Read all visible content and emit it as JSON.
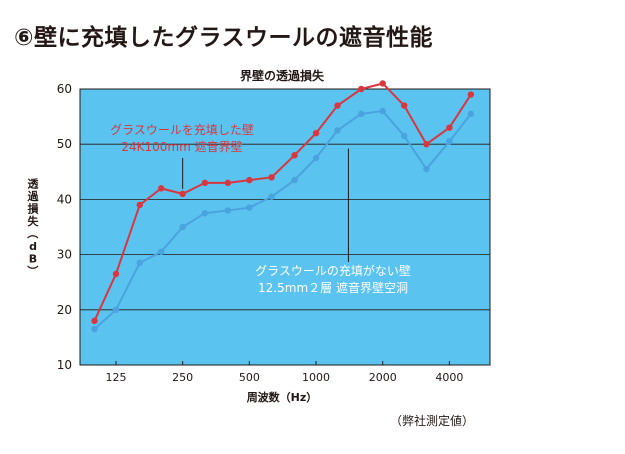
{
  "heading": "⑥壁に充填したグラスウールの遮音性能",
  "note": "（弊社測定値）",
  "chart_data": {
    "type": "line",
    "title": "界壁の透過損失",
    "xlabel": "周波数（Hz）",
    "ylabel": "透過損失（dB）",
    "x_scale": "log",
    "ylim": [
      10,
      60
    ],
    "yticks": [
      10,
      20,
      30,
      40,
      50,
      60
    ],
    "xtick_labels": [
      "125",
      "250",
      "500",
      "1000",
      "2000",
      "4000"
    ],
    "xticks": [
      125,
      250,
      500,
      1000,
      2000,
      4000
    ],
    "x": [
      100,
      125,
      160,
      200,
      250,
      315,
      400,
      500,
      630,
      800,
      1000,
      1250,
      1600,
      2000,
      2500,
      3150,
      4000,
      5000
    ],
    "grid": true,
    "background": "#5bc3ef",
    "series": [
      {
        "name": "グラスウールを充填した壁 24K100mm 遮音界壁",
        "label_lines": [
          "グラスウールを充填した壁",
          "24K100mm  遮音界壁"
        ],
        "color": "#d9363e",
        "values": [
          18,
          26.5,
          39,
          42,
          41,
          43,
          43,
          43.5,
          44,
          48,
          52,
          57,
          60,
          61,
          57,
          50,
          53,
          59
        ]
      },
      {
        "name": "グラスウールの充填がない壁 12.5mm２層 遮音界壁空洞",
        "label_lines": [
          "グラスウールの充填がない壁",
          "12.5mm２層  遮音界壁空洞"
        ],
        "color": "#4aa3df",
        "values": [
          16.5,
          20,
          28.5,
          30.5,
          35,
          37.5,
          38,
          38.5,
          40.5,
          43.5,
          47.5,
          52.5,
          55.5,
          56,
          51.5,
          45.5,
          50.5,
          55.5
        ]
      }
    ]
  }
}
